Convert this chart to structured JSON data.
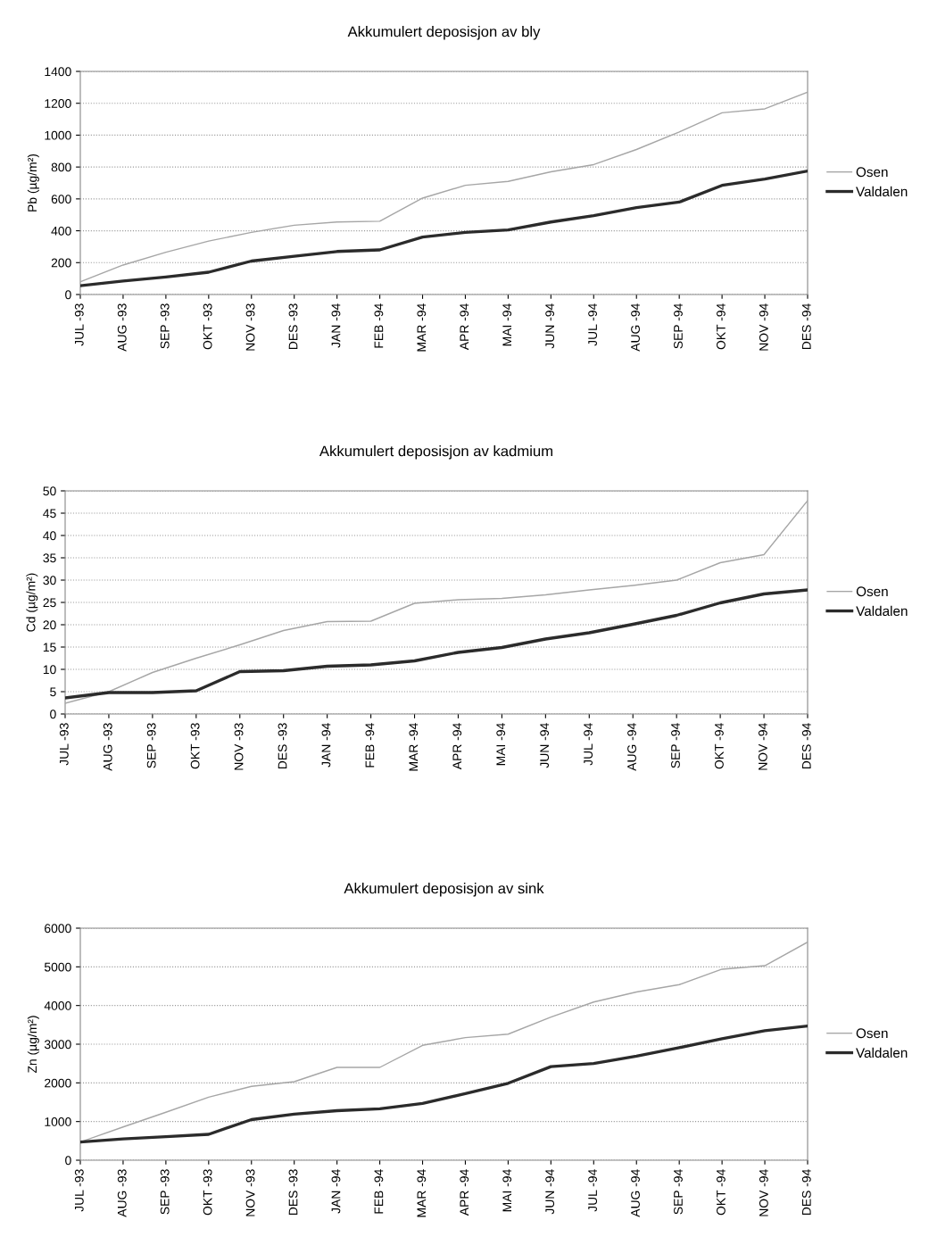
{
  "chart_data": [
    {
      "type": "line",
      "title": "Akkumulert deposisjon av bly",
      "ylabel": "Pb (µg/m²)",
      "categories": [
        "JUL -93",
        "AUG -93",
        "SEP -93",
        "OKT -93",
        "NOV -93",
        "DES -93",
        "JAN -94",
        "FEB -94",
        "MAR -94",
        "APR -94",
        "MAI -94",
        "JUN -94",
        "JUL -94",
        "AUG -94",
        "SEP -94",
        "OKT -94",
        "NOV -94",
        "DES -94"
      ],
      "series": [
        {
          "name": "Osen",
          "color": "#a6a6a6",
          "values": [
            80,
            185,
            265,
            335,
            390,
            435,
            455,
            460,
            605,
            685,
            710,
            770,
            815,
            910,
            1020,
            1140,
            1165,
            1270
          ]
        },
        {
          "name": "Valdalen",
          "color": "#2b2b2b",
          "values": [
            55,
            85,
            110,
            140,
            210,
            240,
            270,
            280,
            360,
            390,
            405,
            455,
            495,
            545,
            580,
            685,
            725,
            775
          ]
        }
      ],
      "ylim": [
        0,
        1400
      ],
      "yticks": [
        0,
        200,
        400,
        600,
        800,
        1000,
        1200,
        1400
      ],
      "grid": "y",
      "legend": "right",
      "marker": "none",
      "line_style": "solid"
    },
    {
      "type": "line",
      "title": "Akkumulert deposisjon av kadmium",
      "ylabel": "Cd (µg/m²)",
      "categories": [
        "JUL -93",
        "AUG -93",
        "SEP -93",
        "OKT -93",
        "NOV -93",
        "DES -93",
        "JAN -94",
        "FEB -94",
        "MAR -94",
        "APR -94",
        "MAI -94",
        "JUN -94",
        "JUL -94",
        "AUG -94",
        "SEP -94",
        "OKT -94",
        "NOV -94",
        "DES -94"
      ],
      "series": [
        {
          "name": "Osen",
          "color": "#a6a6a6",
          "values": [
            2.4,
            5,
            9.3,
            12.5,
            15.5,
            18.7,
            20.7,
            20.8,
            24.8,
            25.6,
            25.9,
            26.7,
            27.8,
            28.8,
            30,
            33.9,
            35.7,
            47.8
          ]
        },
        {
          "name": "Valdalen",
          "color": "#2b2b2b",
          "values": [
            3.6,
            4.8,
            4.8,
            5.2,
            9.5,
            9.7,
            10.7,
            11,
            11.9,
            13.8,
            14.9,
            16.8,
            18.2,
            20.1,
            22.1,
            24.9,
            26.9,
            27.8
          ]
        }
      ],
      "ylim": [
        0,
        50
      ],
      "yticks": [
        0,
        5,
        10,
        15,
        20,
        25,
        30,
        35,
        40,
        45,
        50
      ],
      "grid": "y",
      "legend": "right",
      "marker": "none",
      "line_style": "solid"
    },
    {
      "type": "line",
      "title": "Akkumulert deposisjon av sink",
      "ylabel": "Zn (µg/m²)",
      "categories": [
        "JUL -93",
        "AUG -93",
        "SEP -93",
        "OKT -93",
        "NOV -93",
        "DES -93",
        "JAN -94",
        "FEB -94",
        "MAR -94",
        "APR -94",
        "MAI -94",
        "JUN -94",
        "JUL -94",
        "AUG -94",
        "SEP -94",
        "OKT -94",
        "NOV -94",
        "DES -94"
      ],
      "series": [
        {
          "name": "Osen",
          "color": "#a6a6a6",
          "values": [
            470,
            860,
            1240,
            1630,
            1910,
            2030,
            2400,
            2400,
            2970,
            3170,
            3260,
            3700,
            4090,
            4350,
            4540,
            4940,
            5030,
            5640
          ]
        },
        {
          "name": "Valdalen",
          "color": "#2b2b2b",
          "values": [
            470,
            550,
            610,
            670,
            1050,
            1190,
            1280,
            1330,
            1470,
            1720,
            1990,
            2420,
            2500,
            2690,
            2910,
            3140,
            3350,
            3470
          ]
        }
      ],
      "ylim": [
        0,
        6000
      ],
      "yticks": [
        0,
        1000,
        2000,
        3000,
        4000,
        5000,
        6000
      ],
      "grid": "y",
      "legend": "right",
      "marker": "none",
      "line_style": "solid"
    }
  ]
}
